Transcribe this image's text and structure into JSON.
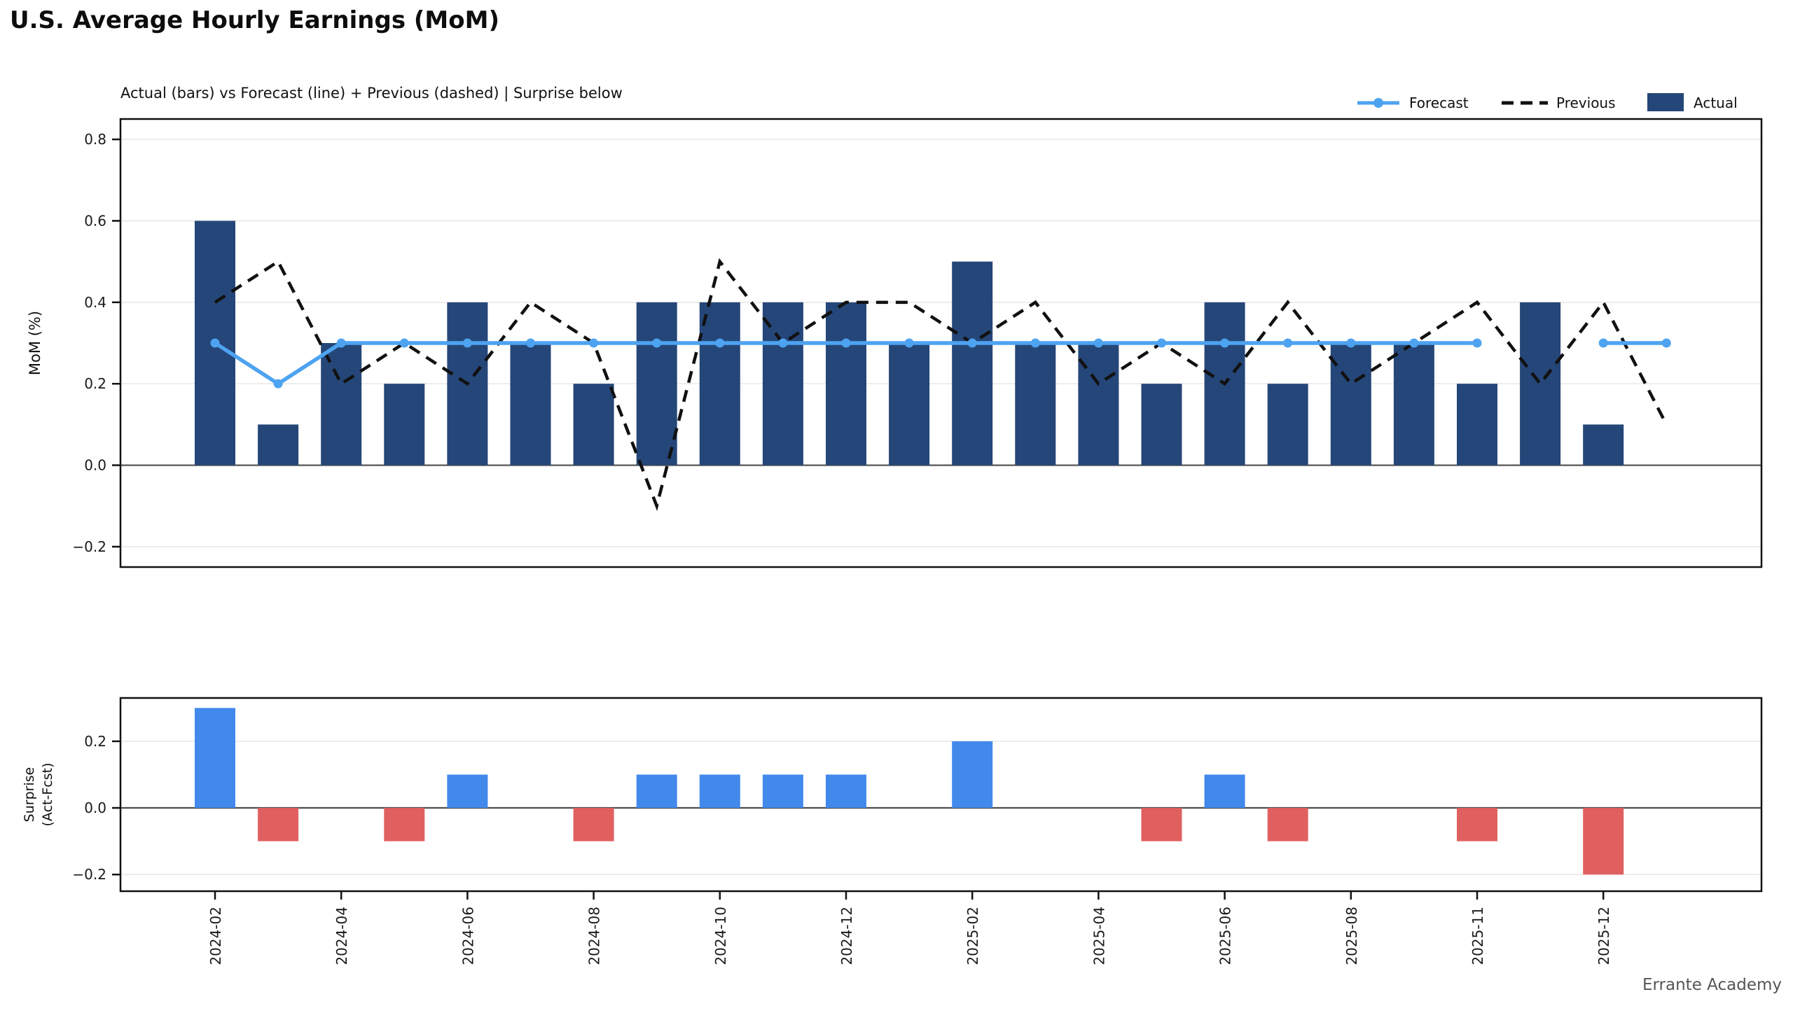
{
  "header": {
    "title": "U.S. Average Hourly Earnings (MoM)"
  },
  "footer": {
    "brand": "Errante Academy"
  },
  "colors": {
    "actual_bar": "#254678",
    "forecast_line": "#4DA3F0",
    "previous_line": "#111111",
    "surprise_positive": "#4289EC",
    "surprise_negative": "#E06060",
    "gridline": "#e7e7e7",
    "zero_line": "#4d4d4d",
    "spine": "#111111",
    "footer_text": "#555555"
  },
  "chart_data": {
    "type": "bar",
    "title": "U.S. Average Hourly Earnings (MoM)",
    "subtitle": "Actual (bars) vs Forecast (line) + Previous (dashed) | Surprise below",
    "n_points": 24,
    "x_tick_labels": [
      {
        "i": 0,
        "label": "2024-02"
      },
      {
        "i": 2,
        "label": "2024-04"
      },
      {
        "i": 4,
        "label": "2024-06"
      },
      {
        "i": 6,
        "label": "2024-08"
      },
      {
        "i": 8,
        "label": "2024-10"
      },
      {
        "i": 10,
        "label": "2024-12"
      },
      {
        "i": 12,
        "label": "2025-02"
      },
      {
        "i": 14,
        "label": "2025-04"
      },
      {
        "i": 16,
        "label": "2025-06"
      },
      {
        "i": 18,
        "label": "2025-08"
      },
      {
        "i": 20,
        "label": "2025-11"
      },
      {
        "i": 22,
        "label": "2025-12"
      }
    ],
    "series": [
      {
        "name": "Actual",
        "type": "bar",
        "panel": "main",
        "values": [
          0.6,
          0.1,
          0.3,
          0.2,
          0.4,
          0.3,
          0.2,
          0.4,
          0.4,
          0.4,
          0.4,
          0.3,
          0.5,
          0.3,
          0.3,
          0.2,
          0.4,
          0.2,
          0.3,
          0.3,
          0.2,
          0.4,
          0.1,
          null
        ]
      },
      {
        "name": "Forecast",
        "type": "line",
        "marker": "circle",
        "panel": "main",
        "values": [
          0.3,
          0.2,
          0.3,
          0.3,
          0.3,
          0.3,
          0.3,
          0.3,
          0.3,
          0.3,
          0.3,
          0.3,
          0.3,
          0.3,
          0.3,
          0.3,
          0.3,
          0.3,
          0.3,
          0.3,
          0.3,
          null,
          0.3,
          0.3
        ]
      },
      {
        "name": "Previous",
        "type": "line",
        "style": "dashed",
        "panel": "main",
        "values": [
          0.4,
          0.5,
          0.2,
          0.3,
          0.2,
          0.4,
          0.3,
          -0.1,
          0.5,
          0.3,
          0.4,
          0.4,
          0.3,
          0.4,
          0.2,
          0.3,
          0.2,
          0.4,
          0.2,
          0.3,
          0.4,
          0.2,
          0.4,
          0.1
        ]
      },
      {
        "name": "Surprise (Act-Fcst)",
        "type": "bar",
        "panel": "surprise",
        "values": [
          0.3,
          -0.1,
          0,
          -0.1,
          0.1,
          0,
          -0.1,
          0.1,
          0.1,
          0.1,
          0.1,
          0,
          0.2,
          0,
          0,
          -0.1,
          0.1,
          -0.1,
          0,
          0,
          -0.1,
          null,
          -0.2,
          null
        ]
      }
    ],
    "main_panel": {
      "ylabel": "MoM (%)",
      "ylim": [
        -0.25,
        0.85
      ],
      "yticks": [
        0.8,
        0.6,
        0.4,
        0.2,
        0.0,
        -0.2
      ],
      "ytick_labels": [
        "0.8",
        "0.6",
        "0.4",
        "0.2",
        "0.0",
        "−0.2"
      ],
      "grid": true
    },
    "surprise_panel": {
      "ylabel_line1": "Surprise",
      "ylabel_line2": "(Act-Fcst)",
      "ylim": [
        -0.25,
        0.33
      ],
      "yticks": [
        0.2,
        0.0,
        -0.2
      ],
      "ytick_labels": [
        "0.2",
        "0.0",
        "−0.2"
      ],
      "grid": true
    },
    "legend_position": "upper right"
  },
  "legend": {
    "items": [
      {
        "label": "Forecast"
      },
      {
        "label": "Previous"
      },
      {
        "label": "Actual"
      }
    ]
  }
}
